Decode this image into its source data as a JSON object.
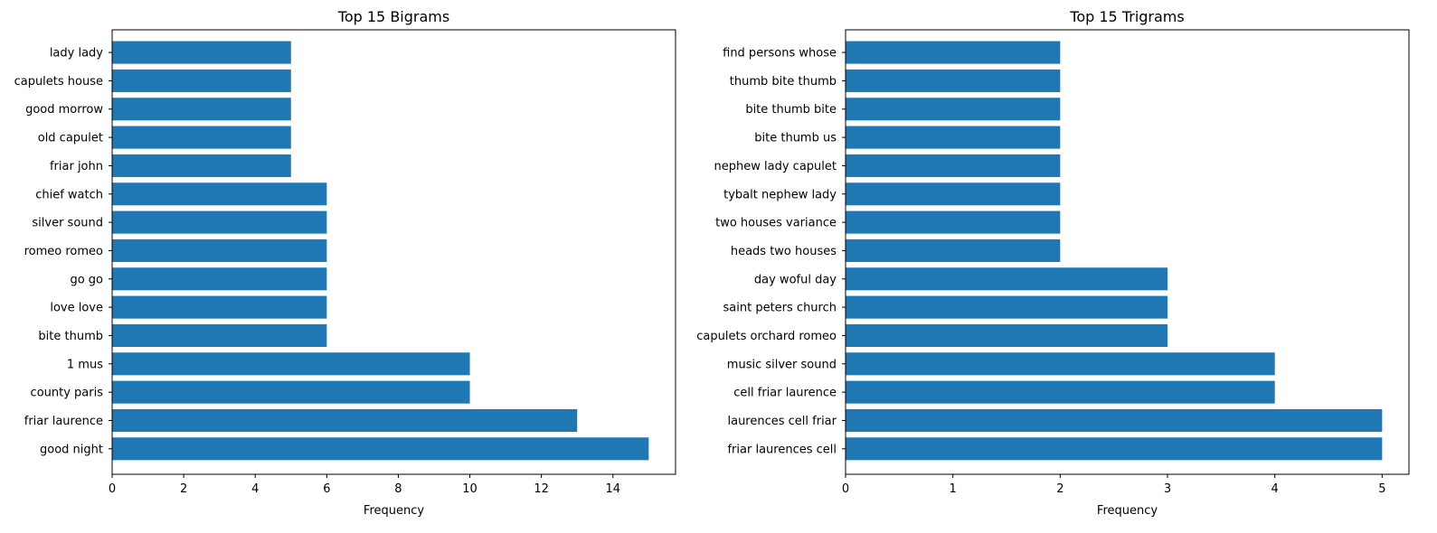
{
  "chart_data": [
    {
      "type": "bar",
      "orientation": "horizontal",
      "title": "Top 15 Bigrams",
      "xlabel": "Frequency",
      "ylabel": "",
      "xlim": [
        0,
        15.75
      ],
      "xticks": [
        0,
        2,
        4,
        6,
        8,
        10,
        12,
        14
      ],
      "grid": false,
      "color": "#1f77b4",
      "categories": [
        "good night",
        "friar laurence",
        "county paris",
        "1 mus",
        "bite thumb",
        "love love",
        "go go",
        "romeo romeo",
        "silver sound",
        "chief watch",
        "friar john",
        "old capulet",
        "good morrow",
        "capulets house",
        "lady lady"
      ],
      "values": [
        15,
        13,
        10,
        10,
        6,
        6,
        6,
        6,
        6,
        6,
        5,
        5,
        5,
        5,
        5
      ]
    },
    {
      "type": "bar",
      "orientation": "horizontal",
      "title": "Top 15 Trigrams",
      "xlabel": "Frequency",
      "ylabel": "",
      "xlim": [
        0,
        5.25
      ],
      "xticks": [
        0,
        1,
        2,
        3,
        4,
        5
      ],
      "grid": false,
      "color": "#1f77b4",
      "categories": [
        "friar laurences cell",
        "laurences cell friar",
        "cell friar laurence",
        "music silver sound",
        "capulets orchard romeo",
        "saint peters church",
        "day woful day",
        "heads two houses",
        "two houses variance",
        "tybalt nephew lady",
        "nephew lady capulet",
        "bite thumb us",
        "bite thumb bite",
        "thumb bite thumb",
        "find persons whose"
      ],
      "values": [
        5,
        5,
        4,
        4,
        3,
        3,
        3,
        2,
        2,
        2,
        2,
        2,
        2,
        2,
        2
      ]
    }
  ]
}
